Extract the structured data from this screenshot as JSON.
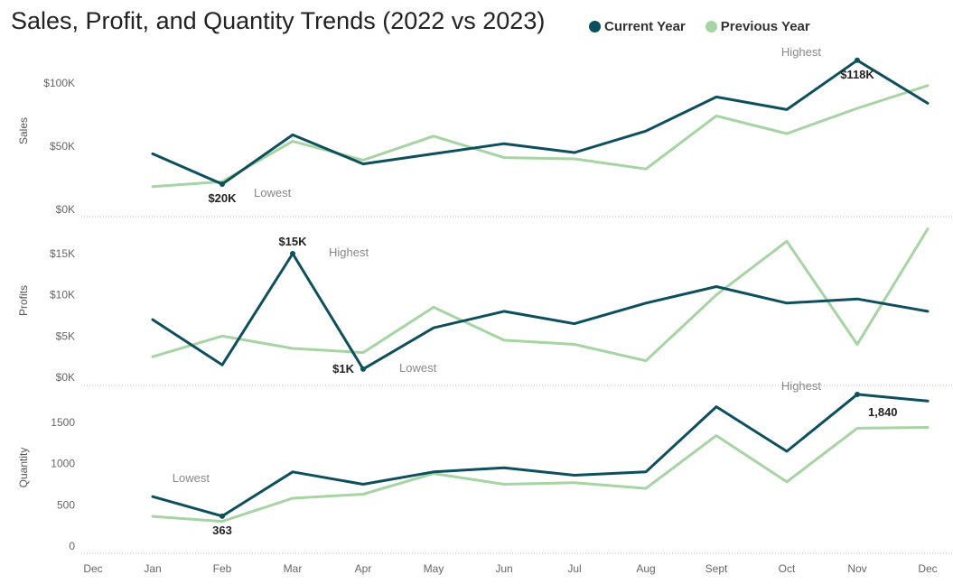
{
  "chart_data": {
    "type": "line",
    "title": "Sales, Profit, and Quantity Trends (2022 vs 2023)",
    "categories": [
      "Dec",
      "Jan",
      "Feb",
      "Mar",
      "Apr",
      "May",
      "Jun",
      "Jul",
      "Aug",
      "Sept",
      "Oct",
      "Nov",
      "Dec"
    ],
    "legend": [
      {
        "name": "Current Year",
        "color": "#0d4f5c"
      },
      {
        "name": "Previous Year",
        "color": "#a6d4a3"
      }
    ],
    "legend_position": "top-right",
    "panels": [
      {
        "ylabel": "Sales",
        "ylim": [
          0,
          120000
        ],
        "yticks": [
          {
            "value": 0,
            "label": "$0K"
          },
          {
            "value": 50000,
            "label": "$50K"
          },
          {
            "value": 100000,
            "label": "$100K"
          }
        ],
        "series": [
          {
            "name": "Current Year",
            "values": [
              null,
              44000,
              20000,
              59000,
              36000,
              44000,
              52000,
              45000,
              62000,
              89000,
              79000,
              118000,
              84000
            ]
          },
          {
            "name": "Previous Year",
            "values": [
              null,
              18000,
              22000,
              54000,
              39000,
              58000,
              41000,
              40000,
              32000,
              74000,
              60000,
              80000,
              98000
            ]
          }
        ],
        "annotations": [
          {
            "text": "$20K",
            "category": 2,
            "value": 20000,
            "kind": "value",
            "placement": "below"
          },
          {
            "text": "Lowest",
            "category": 2,
            "value": 20000,
            "kind": "note",
            "placement": "below-right"
          },
          {
            "text": "$118K",
            "category": 11,
            "value": 118000,
            "kind": "value",
            "placement": "below"
          },
          {
            "text": "Highest",
            "category": 11,
            "value": 118000,
            "kind": "note",
            "placement": "left"
          }
        ]
      },
      {
        "ylabel": "Profits",
        "ylim": [
          0,
          18000
        ],
        "yticks": [
          {
            "value": 0,
            "label": "$0K"
          },
          {
            "value": 5000,
            "label": "$5K"
          },
          {
            "value": 10000,
            "label": "$10K"
          },
          {
            "value": 15000,
            "label": "$15K"
          }
        ],
        "series": [
          {
            "name": "Current Year",
            "values": [
              null,
              7000,
              1500,
              15000,
              1000,
              6000,
              8000,
              6500,
              9000,
              11000,
              9000,
              9500,
              8000
            ]
          },
          {
            "name": "Previous Year",
            "values": [
              null,
              2500,
              5000,
              3500,
              3000,
              8500,
              4500,
              4000,
              2000,
              10000,
              16500,
              4000,
              18000
            ]
          }
        ],
        "annotations": [
          {
            "text": "$15K",
            "category": 3,
            "value": 15000,
            "kind": "value",
            "placement": "above"
          },
          {
            "text": "Highest",
            "category": 3,
            "value": 15000,
            "kind": "note",
            "placement": "right"
          },
          {
            "text": "$1K",
            "category": 4,
            "value": 1000,
            "kind": "value",
            "placement": "left"
          },
          {
            "text": "Lowest",
            "category": 4,
            "value": 1000,
            "kind": "note",
            "placement": "right"
          }
        ]
      },
      {
        "ylabel": "Quantity",
        "ylim": [
          0,
          1900
        ],
        "yticks": [
          {
            "value": 0,
            "label": "0"
          },
          {
            "value": 500,
            "label": "500"
          },
          {
            "value": 1000,
            "label": "1000"
          },
          {
            "value": 1500,
            "label": "1500"
          }
        ],
        "series": [
          {
            "name": "Current Year",
            "values": [
              null,
              600,
              363,
              900,
              750,
              900,
              950,
              860,
              900,
              1690,
              1150,
              1840,
              1760
            ]
          },
          {
            "name": "Previous Year",
            "values": [
              null,
              360,
              300,
              580,
              630,
              880,
              750,
              770,
              700,
              1340,
              780,
              1430,
              1440
            ]
          }
        ],
        "annotations": [
          {
            "text": "363",
            "category": 2,
            "value": 363,
            "kind": "value",
            "placement": "below"
          },
          {
            "text": "Lowest",
            "category": 2,
            "value": 363,
            "kind": "note",
            "placement": "above-left"
          },
          {
            "text": "1,840",
            "category": 11,
            "value": 1840,
            "kind": "value",
            "placement": "below-right"
          },
          {
            "text": "Highest",
            "category": 11,
            "value": 1840,
            "kind": "note",
            "placement": "left"
          }
        ]
      }
    ]
  }
}
